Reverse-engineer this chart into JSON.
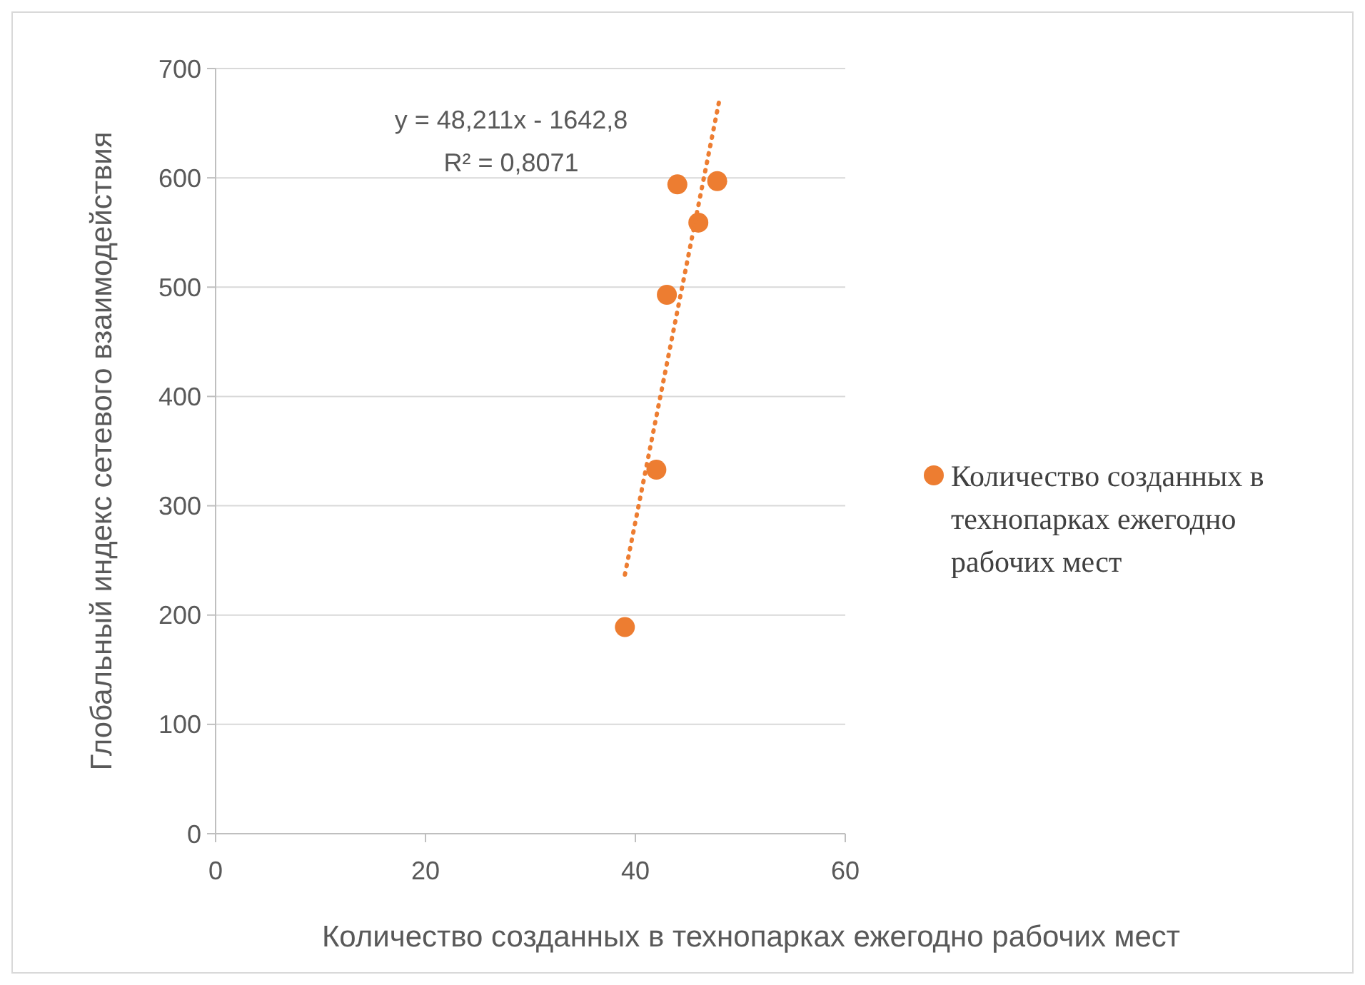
{
  "chart_data": {
    "type": "scatter",
    "xlabel": "Количество созданных в технопарках ежегодно рабочих мест",
    "ylabel": "Глобальный индекс сетевого взаимодействия",
    "xlim": [
      0,
      60
    ],
    "xticks": [
      0,
      20,
      40,
      60
    ],
    "ylim": [
      0,
      700
    ],
    "yticks": [
      0,
      100,
      200,
      300,
      400,
      500,
      600,
      700
    ],
    "grid": "y",
    "legend": "right",
    "series": [
      {
        "name": "Количество созданных в технопарках ежегодно рабочих мест",
        "color": "#ed7d31",
        "marker": "circle",
        "x": [
          39,
          42,
          43,
          44,
          46,
          47.8
        ],
        "values": [
          189,
          333,
          493,
          594,
          559,
          597
        ]
      },
      {
        "type": "line",
        "color": "#ed7d31",
        "line_style": "dotted",
        "x": [
          39,
          48
        ],
        "values": [
          237,
          671
        ]
      }
    ],
    "annotations": [
      "y = 48,211x - 1642,8",
      "R² = 0,8071"
    ]
  }
}
